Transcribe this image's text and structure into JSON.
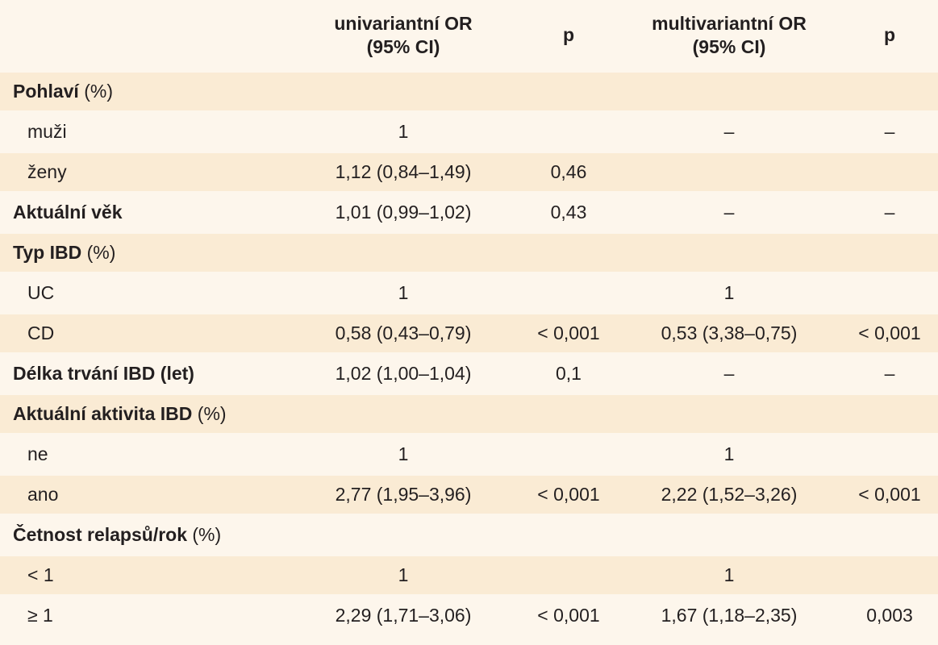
{
  "headers": {
    "col0": "",
    "col1_line1": "univariantní OR",
    "col1_line2": "(95% CI)",
    "col2": "p",
    "col3_line1": "multivariantní OR",
    "col3_line2": "(95% CI)",
    "col4": "p"
  },
  "rows": [
    {
      "label_bold": "Pohlaví",
      "label_rest": " (%)",
      "uni_or": "",
      "uni_p": "",
      "multi_or": "",
      "multi_p": ""
    },
    {
      "label": "muži",
      "uni_or": "1",
      "uni_p": "",
      "multi_or": "–",
      "multi_p": "–"
    },
    {
      "label": "ženy",
      "uni_or": "1,12 (0,84–1,49)",
      "uni_p": "0,46",
      "multi_or": "",
      "multi_p": ""
    },
    {
      "label_bold": "Aktuální věk",
      "label_rest": "",
      "uni_or": "1,01 (0,99–1,02)",
      "uni_p": "0,43",
      "multi_or": "–",
      "multi_p": "–"
    },
    {
      "label_bold": "Typ IBD",
      "label_rest": " (%)",
      "uni_or": "",
      "uni_p": "",
      "multi_or": "",
      "multi_p": ""
    },
    {
      "label": "UC",
      "uni_or": "1",
      "uni_p": "",
      "multi_or": "1",
      "multi_p": ""
    },
    {
      "label": "CD",
      "uni_or": "0,58 (0,43–0,79)",
      "uni_p": "< 0,001",
      "multi_or": "0,53 (3,38–0,75)",
      "multi_p": "< 0,001"
    },
    {
      "label_bold": "Délka trvání IBD (let)",
      "label_rest": "",
      "uni_or": "1,02 (1,00–1,04)",
      "uni_p": "0,1",
      "multi_or": "–",
      "multi_p": "–"
    },
    {
      "label_bold": "Aktuální aktivita IBD",
      "label_rest": " (%)",
      "uni_or": "",
      "uni_p": "",
      "multi_or": "",
      "multi_p": ""
    },
    {
      "label": "ne",
      "uni_or": "1",
      "uni_p": "",
      "multi_or": "1",
      "multi_p": ""
    },
    {
      "label": "ano",
      "uni_or": "2,77 (1,95–3,96)",
      "uni_p": "< 0,001",
      "multi_or": "2,22 (1,52–3,26)",
      "multi_p": "< 0,001"
    },
    {
      "label_bold": "Četnost relapsů/rok",
      "label_rest": " (%)",
      "uni_or": "",
      "uni_p": "",
      "multi_or": "",
      "multi_p": ""
    },
    {
      "label": "< 1",
      "uni_or": "1",
      "uni_p": "",
      "multi_or": "1",
      "multi_p": ""
    },
    {
      "label": "≥ 1",
      "uni_or": "2,29 (1,71–3,06)",
      "uni_p": "< 0,001",
      "multi_or": "1,67 (1,18–2,35)",
      "multi_p": "0,003"
    }
  ]
}
